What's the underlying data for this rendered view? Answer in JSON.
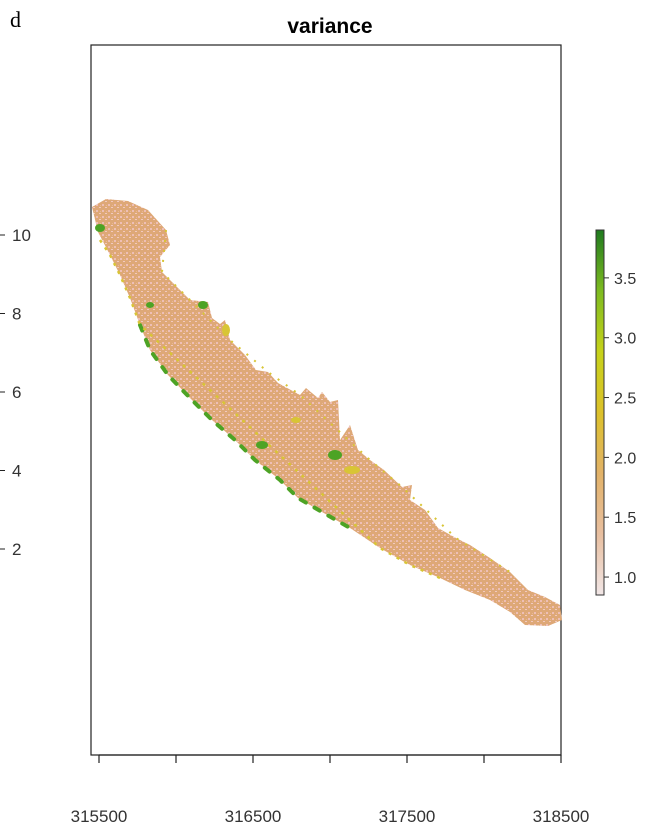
{
  "panel_label": "d",
  "chart_data": {
    "type": "raster_map",
    "title": "variance",
    "x_ticks": [
      "315500",
      "316500",
      "317500",
      "318500"
    ],
    "y_ticks": [
      "10",
      "8",
      "6",
      "4",
      "2"
    ],
    "legend": {
      "ticks": [
        "3.5",
        "3.0",
        "2.5",
        "2.0",
        "1.5",
        "1.0"
      ],
      "range": [
        0.85,
        3.9
      ],
      "colors": [
        "#f1e6e6",
        "#e8bfa0",
        "#e2b268",
        "#dcc12a",
        "#c6d21a",
        "#7dbb20",
        "#1f7a1f"
      ]
    },
    "fill_colors": {
      "base": "#dea877",
      "speckle": "#eebfb6",
      "low_edge": "#d8c535",
      "high_edge": "#4da325"
    }
  }
}
